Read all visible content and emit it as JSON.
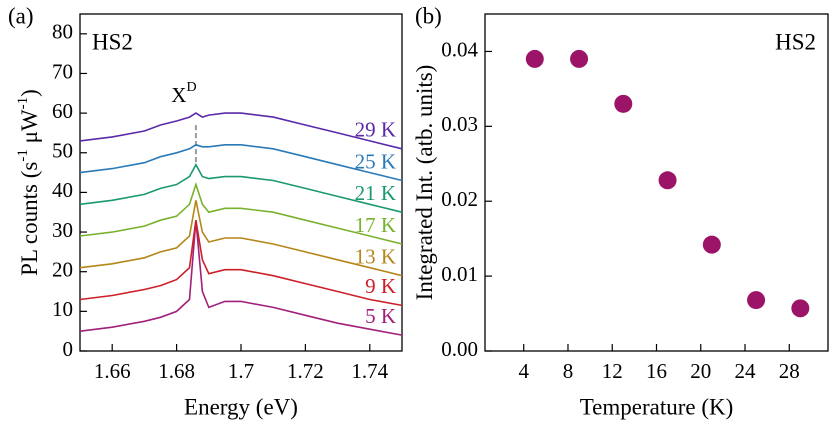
{
  "chart_data": [
    {
      "type": "line",
      "panel_label": "(a)",
      "annotation": "HS2",
      "peak_label": [
        "X",
        "D"
      ],
      "xlabel": "Energy (eV)",
      "ylabel": [
        "PL counts (s",
        "-1",
        " μW",
        "-1",
        ")"
      ],
      "x": [
        1.65,
        1.66,
        1.67,
        1.675,
        1.68,
        1.684,
        1.686,
        1.688,
        1.69,
        1.695,
        1.7,
        1.71,
        1.72,
        1.73,
        1.74,
        1.75
      ],
      "xlim": [
        1.65,
        1.75
      ],
      "xticks": [
        1.66,
        1.68,
        1.7,
        1.72,
        1.74
      ],
      "ylim": [
        0,
        85
      ],
      "yticks": [
        0,
        10,
        20,
        30,
        40,
        50,
        60,
        70,
        80
      ],
      "series": [
        {
          "name": "5 K",
          "color": "#a0207a",
          "values": [
            5,
            6,
            7.5,
            8.5,
            10,
            13,
            33,
            15,
            11,
            12.5,
            12.5,
            11,
            9,
            7,
            5.5,
            4
          ]
        },
        {
          "name": "9 K",
          "color": "#cc1f2a",
          "values": [
            13,
            14,
            15.5,
            16.5,
            18,
            21,
            33,
            23,
            19.5,
            20.5,
            20.5,
            19,
            17,
            15,
            13,
            11.5
          ]
        },
        {
          "name": "13 K",
          "color": "#b5861a",
          "values": [
            21,
            22,
            23.5,
            25,
            26,
            29,
            38,
            30,
            27.5,
            28.5,
            28.5,
            27,
            25,
            23,
            21,
            19
          ]
        },
        {
          "name": "17 K",
          "color": "#7ab22e",
          "values": [
            29,
            30,
            31.5,
            33,
            34,
            37,
            42,
            37,
            35,
            36,
            36,
            35,
            33,
            31,
            29,
            27
          ]
        },
        {
          "name": "21 K",
          "color": "#1a9a6a",
          "values": [
            37,
            38,
            39.5,
            41,
            42,
            44,
            47,
            44,
            43.5,
            44,
            44,
            43,
            41,
            39,
            37,
            35
          ]
        },
        {
          "name": "25 K",
          "color": "#2a7ab8",
          "values": [
            45,
            46,
            47.5,
            49,
            50,
            51,
            52,
            51.5,
            51.5,
            52,
            52,
            51,
            49,
            47,
            45,
            43
          ]
        },
        {
          "name": "29 K",
          "color": "#5a2aa8",
          "values": [
            53,
            54,
            55.5,
            57,
            58,
            59,
            60,
            59,
            59.5,
            60,
            60,
            59,
            57,
            55,
            53,
            51
          ]
        }
      ]
    },
    {
      "type": "scatter",
      "panel_label": "(b)",
      "annotation": "HS2",
      "xlabel": "Temperature (K)",
      "ylabel": [
        "Integrated Int. (atb. units)"
      ],
      "x": [
        5,
        9,
        13,
        17,
        21,
        25,
        29
      ],
      "values": [
        0.039,
        0.039,
        0.033,
        0.0228,
        0.0142,
        0.0068,
        0.0057
      ],
      "color": "#9c1468",
      "xlim": [
        0.5,
        31.5
      ],
      "xticks": [
        4,
        8,
        12,
        16,
        20,
        24,
        28
      ],
      "ylim": [
        0,
        0.045
      ],
      "yticks": [
        {
          "value": 0,
          "label": "0.00"
        },
        {
          "value": 0.01,
          "label": "0.01"
        },
        {
          "value": 0.02,
          "label": "0.02"
        },
        {
          "value": 0.03,
          "label": "0.03"
        },
        {
          "value": 0.04,
          "label": "0.04"
        }
      ]
    }
  ]
}
